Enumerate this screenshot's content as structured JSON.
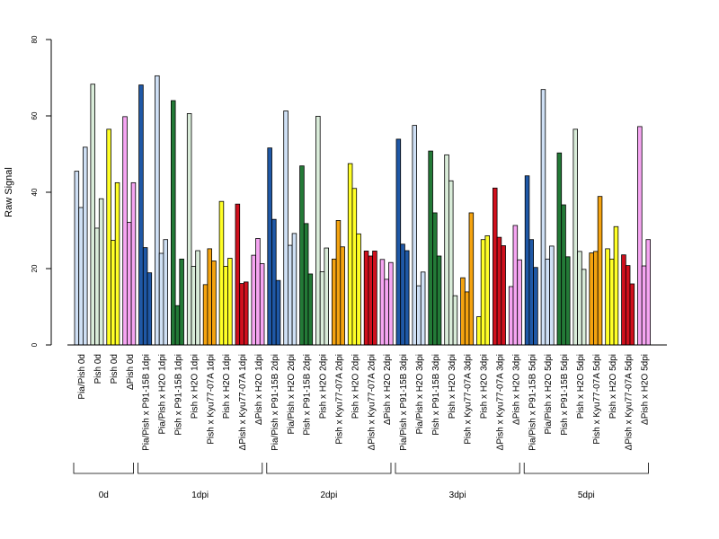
{
  "chart_data": {
    "type": "bar",
    "ylabel": "Raw Signal",
    "ylim": [
      0,
      80
    ],
    "yticks": [
      0,
      20,
      40,
      60,
      80
    ],
    "grid": false,
    "palette": {
      "light_blue": "#cfe0f5",
      "dark_blue": "#1f58a6",
      "light_green": "#d9ecd9",
      "dark_green": "#237a37",
      "orange": "#f4a310",
      "yellow": "#ffff27",
      "red": "#d0101d",
      "pink": "#f6a5f2"
    },
    "groups": [
      {
        "label": "0d",
        "categories": [
          {
            "label": "Pia/Pish 0d",
            "color": "light_blue",
            "values": [
              45.5,
              36,
              51.8
            ]
          },
          {
            "label": "Pish 0d",
            "color": "light_green",
            "values": [
              68.3,
              30.6,
              38.3
            ]
          },
          {
            "label": "Pish 0d",
            "color": "yellow",
            "values": [
              56.5,
              27.4,
              42.5
            ]
          },
          {
            "label": "ΔPish 0d",
            "color": "pink",
            "values": [
              59.8,
              32.1,
              42.5
            ]
          }
        ]
      },
      {
        "label": "1dpi",
        "categories": [
          {
            "label": "Pia/Pish x P91-15B 1dpi",
            "color": "dark_blue",
            "values": [
              68.1,
              25.5,
              18.9
            ]
          },
          {
            "label": "Pia/Pish x H2O 1dpi",
            "color": "light_blue",
            "values": [
              70.5,
              24,
              27.6
            ]
          },
          {
            "label": "Pish x P91-15B 1dpi",
            "color": "dark_green",
            "values": [
              64,
              10.3,
              22.5
            ]
          },
          {
            "label": "Pish x H2O 1dpi",
            "color": "light_green",
            "values": [
              60.6,
              20.6,
              24.7
            ]
          },
          {
            "label": "Pish x Kyu77-07A 1dpi",
            "color": "orange",
            "values": [
              15.8,
              25.2,
              22
            ]
          },
          {
            "label": "Pish x H2O 1dpi",
            "color": "yellow",
            "values": [
              37.6,
              20.6,
              22.7
            ]
          },
          {
            "label": "ΔPish x Kyu77-07A 1dpi",
            "color": "red",
            "values": [
              36.9,
              16.1,
              16.5
            ]
          },
          {
            "label": "ΔPish x H2O 1dpi",
            "color": "pink",
            "values": [
              23.5,
              27.9,
              21.3
            ]
          }
        ]
      },
      {
        "label": "2dpi",
        "categories": [
          {
            "label": "Pia/Pish x P91-15B 2dpi",
            "color": "dark_blue",
            "values": [
              51.6,
              32.9,
              16.9
            ]
          },
          {
            "label": "Pia/Pish x H2O 2dpi",
            "color": "light_blue",
            "values": [
              61.3,
              26.1,
              29.2
            ]
          },
          {
            "label": "Pish x P91-15B 2dpi",
            "color": "dark_green",
            "values": [
              46.9,
              31.8,
              18.6
            ]
          },
          {
            "label": "Pish x H2O 2dpi",
            "color": "light_green",
            "values": [
              59.9,
              19.2,
              25.4
            ]
          },
          {
            "label": "Pish x Kyu77-07A 2dpi",
            "color": "orange",
            "values": [
              22.5,
              32.6,
              25.7
            ]
          },
          {
            "label": "Pish x H2O 2dpi",
            "color": "yellow",
            "values": [
              47.5,
              41,
              29.1
            ]
          },
          {
            "label": "ΔPish x Kyu77-07A 2dpi",
            "color": "red",
            "values": [
              24.6,
              23.3,
              24.6
            ]
          },
          {
            "label": "ΔPish x H2O 2dpi",
            "color": "pink",
            "values": [
              22.4,
              17.2,
              21.6
            ]
          }
        ]
      },
      {
        "label": "3dpi",
        "categories": [
          {
            "label": "Pia/Pish x P91-15B 3dpi",
            "color": "dark_blue",
            "values": [
              53.9,
              26.4,
              24.7
            ]
          },
          {
            "label": "Pia/Pish x H2O 3dpi",
            "color": "light_blue",
            "values": [
              57.5,
              15.5,
              19.1
            ]
          },
          {
            "label": "Pish x P91-15B 3dpi",
            "color": "dark_green",
            "values": [
              50.8,
              34.6,
              23.3
            ]
          },
          {
            "label": "Pish x H2O 3dpi",
            "color": "light_green",
            "values": [
              49.8,
              43,
              12.9
            ]
          },
          {
            "label": "Pish x Kyu77-07A 3dpi",
            "color": "orange",
            "values": [
              17.6,
              13.9,
              34.6
            ]
          },
          {
            "label": "Pish x H2O 3dpi",
            "color": "yellow",
            "values": [
              7.4,
              27.6,
              28.6
            ]
          },
          {
            "label": "ΔPish x Kyu77-07A 3dpi",
            "color": "red",
            "values": [
              41.1,
              28.2,
              26
            ]
          },
          {
            "label": "ΔPish x H2O 3dpi",
            "color": "pink",
            "values": [
              15.3,
              31.3,
              22.3
            ]
          }
        ]
      },
      {
        "label": "5dpi",
        "categories": [
          {
            "label": "Pia/Pish x P91-15B 5dpi",
            "color": "dark_blue",
            "values": [
              44.3,
              27.6,
              20.3
            ]
          },
          {
            "label": "Pia/Pish x H2O 5dpi",
            "color": "light_blue",
            "values": [
              66.9,
              22.5,
              25.9
            ]
          },
          {
            "label": "Pish x P91-15B 5dpi",
            "color": "dark_green",
            "values": [
              50.3,
              36.7,
              23.1
            ]
          },
          {
            "label": "Pish x H2O 5dpi",
            "color": "light_green",
            "values": [
              56.5,
              24.5,
              19.8
            ]
          },
          {
            "label": "Pish x Kyu77-07A 5dpi",
            "color": "orange",
            "values": [
              24.1,
              24.5,
              38.9
            ]
          },
          {
            "label": "Pish x H2O 5dpi",
            "color": "yellow",
            "values": [
              25.2,
              22.5,
              31
            ]
          },
          {
            "label": "ΔPish x Kyu77-07A 5dpi",
            "color": "red",
            "values": [
              23.6,
              20.8,
              16
            ]
          },
          {
            "label": "ΔPish x H2O 5dpi",
            "color": "pink",
            "values": [
              57.2,
              20.7,
              27.6
            ]
          }
        ]
      }
    ]
  }
}
